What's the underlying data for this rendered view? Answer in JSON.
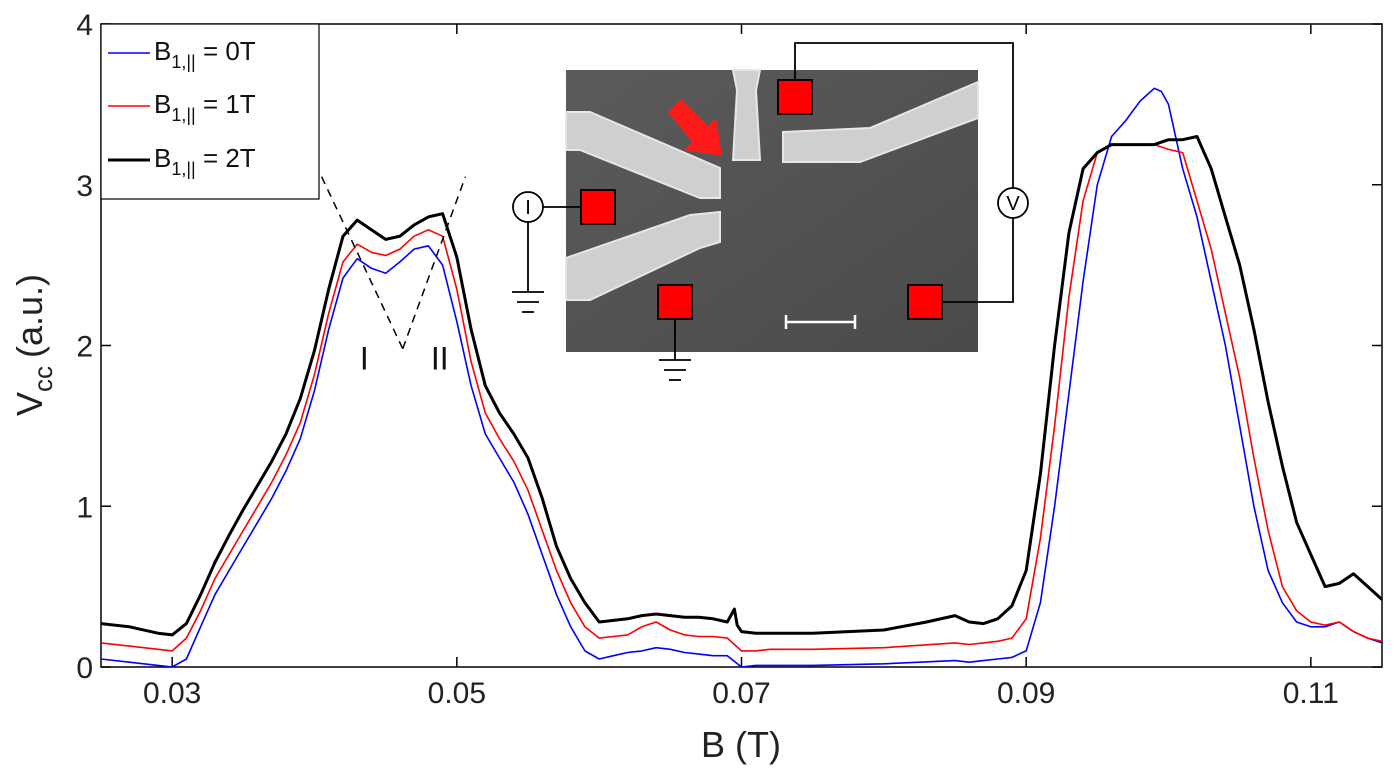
{
  "chart_data": {
    "type": "line",
    "xlabel": "B (T)",
    "ylabel_main": "V",
    "ylabel_sub": "cc",
    "ylabel_unit": "(a.u.)",
    "xlim": [
      0.025,
      0.115
    ],
    "ylim": [
      0,
      4
    ],
    "xticks": [
      0.03,
      0.05,
      0.07,
      0.09,
      0.11
    ],
    "xtick_labels": [
      "0.03",
      "0.05",
      "0.07",
      "0.09",
      "0.11"
    ],
    "yticks": [
      0,
      1,
      2,
      3,
      4
    ],
    "ytick_labels": [
      "0",
      "1",
      "2",
      "3",
      "4"
    ],
    "grid": false,
    "legend_position": "top-left",
    "series": [
      {
        "name": "B1,|| = 0T",
        "label_main": "B",
        "label_sub": "1,||",
        "label_rest": " = 0T",
        "color": "#0000ff",
        "x": [
          0.025,
          0.027,
          0.029,
          0.03,
          0.031,
          0.032,
          0.033,
          0.034,
          0.035,
          0.036,
          0.037,
          0.038,
          0.039,
          0.04,
          0.041,
          0.042,
          0.043,
          0.044,
          0.045,
          0.046,
          0.047,
          0.048,
          0.049,
          0.05,
          0.051,
          0.052,
          0.053,
          0.054,
          0.055,
          0.056,
          0.057,
          0.058,
          0.059,
          0.06,
          0.061,
          0.062,
          0.063,
          0.064,
          0.065,
          0.066,
          0.067,
          0.068,
          0.069,
          0.07,
          0.071,
          0.072,
          0.075,
          0.08,
          0.085,
          0.086,
          0.087,
          0.088,
          0.089,
          0.09,
          0.091,
          0.092,
          0.093,
          0.094,
          0.095,
          0.096,
          0.097,
          0.098,
          0.099,
          0.0995,
          0.1,
          0.101,
          0.102,
          0.103,
          0.104,
          0.105,
          0.106,
          0.107,
          0.108,
          0.109,
          0.11,
          0.111,
          0.112,
          0.113,
          0.114,
          0.115
        ],
        "y": [
          0.05,
          0.03,
          0.01,
          0.0,
          0.05,
          0.25,
          0.45,
          0.6,
          0.75,
          0.9,
          1.05,
          1.22,
          1.42,
          1.72,
          2.1,
          2.42,
          2.54,
          2.48,
          2.45,
          2.52,
          2.6,
          2.62,
          2.5,
          2.15,
          1.75,
          1.45,
          1.3,
          1.15,
          0.95,
          0.7,
          0.45,
          0.25,
          0.1,
          0.05,
          0.07,
          0.09,
          0.1,
          0.12,
          0.11,
          0.09,
          0.08,
          0.07,
          0.07,
          0.0,
          0.01,
          0.01,
          0.01,
          0.02,
          0.04,
          0.03,
          0.04,
          0.05,
          0.06,
          0.1,
          0.4,
          1.0,
          1.7,
          2.4,
          3.0,
          3.3,
          3.4,
          3.52,
          3.6,
          3.58,
          3.5,
          3.1,
          2.8,
          2.4,
          2.0,
          1.5,
          1.0,
          0.6,
          0.4,
          0.28,
          0.25,
          0.25,
          0.28,
          0.22,
          0.18,
          0.15
        ]
      },
      {
        "name": "B1,|| = 1T",
        "label_main": "B",
        "label_sub": "1,||",
        "label_rest": " = 1T",
        "color": "#ff0000",
        "x": [
          0.025,
          0.027,
          0.029,
          0.03,
          0.031,
          0.032,
          0.033,
          0.034,
          0.035,
          0.036,
          0.037,
          0.038,
          0.039,
          0.04,
          0.041,
          0.042,
          0.043,
          0.044,
          0.045,
          0.046,
          0.047,
          0.048,
          0.049,
          0.05,
          0.051,
          0.052,
          0.053,
          0.054,
          0.055,
          0.056,
          0.057,
          0.058,
          0.059,
          0.06,
          0.061,
          0.062,
          0.063,
          0.064,
          0.065,
          0.066,
          0.067,
          0.068,
          0.069,
          0.07,
          0.071,
          0.072,
          0.075,
          0.08,
          0.085,
          0.086,
          0.087,
          0.088,
          0.089,
          0.09,
          0.091,
          0.092,
          0.093,
          0.094,
          0.095,
          0.096,
          0.097,
          0.098,
          0.099,
          0.1,
          0.101,
          0.102,
          0.103,
          0.104,
          0.105,
          0.106,
          0.107,
          0.108,
          0.109,
          0.11,
          0.111,
          0.112,
          0.113,
          0.114,
          0.115
        ],
        "y": [
          0.15,
          0.13,
          0.11,
          0.1,
          0.18,
          0.35,
          0.55,
          0.7,
          0.85,
          1.0,
          1.15,
          1.32,
          1.52,
          1.82,
          2.2,
          2.52,
          2.63,
          2.58,
          2.56,
          2.6,
          2.68,
          2.72,
          2.68,
          2.35,
          1.9,
          1.58,
          1.42,
          1.28,
          1.1,
          0.85,
          0.6,
          0.4,
          0.25,
          0.18,
          0.19,
          0.2,
          0.25,
          0.28,
          0.23,
          0.2,
          0.19,
          0.19,
          0.18,
          0.1,
          0.1,
          0.11,
          0.11,
          0.12,
          0.15,
          0.14,
          0.15,
          0.16,
          0.18,
          0.3,
          0.8,
          1.5,
          2.3,
          2.9,
          3.2,
          3.25,
          3.25,
          3.25,
          3.25,
          3.22,
          3.2,
          2.9,
          2.6,
          2.2,
          1.8,
          1.3,
          0.85,
          0.5,
          0.35,
          0.28,
          0.26,
          0.28,
          0.22,
          0.18,
          0.16
        ]
      },
      {
        "name": "B1,|| = 2T",
        "label_main": "B",
        "label_sub": "1,||",
        "label_rest": " = 2T",
        "color": "#000000",
        "x": [
          0.025,
          0.027,
          0.029,
          0.03,
          0.031,
          0.032,
          0.033,
          0.034,
          0.035,
          0.036,
          0.037,
          0.038,
          0.039,
          0.04,
          0.041,
          0.042,
          0.043,
          0.044,
          0.045,
          0.046,
          0.047,
          0.048,
          0.049,
          0.05,
          0.051,
          0.052,
          0.053,
          0.054,
          0.055,
          0.056,
          0.057,
          0.058,
          0.059,
          0.06,
          0.061,
          0.062,
          0.063,
          0.064,
          0.065,
          0.066,
          0.067,
          0.068,
          0.069,
          0.0695,
          0.0697,
          0.07,
          0.071,
          0.072,
          0.075,
          0.08,
          0.083,
          0.085,
          0.086,
          0.087,
          0.088,
          0.089,
          0.09,
          0.091,
          0.092,
          0.093,
          0.094,
          0.095,
          0.096,
          0.097,
          0.098,
          0.099,
          0.1,
          0.101,
          0.102,
          0.103,
          0.104,
          0.105,
          0.106,
          0.107,
          0.108,
          0.109,
          0.11,
          0.111,
          0.112,
          0.113,
          0.114,
          0.115
        ],
        "y": [
          0.27,
          0.25,
          0.21,
          0.2,
          0.27,
          0.45,
          0.65,
          0.82,
          0.98,
          1.13,
          1.28,
          1.45,
          1.67,
          1.97,
          2.35,
          2.68,
          2.78,
          2.72,
          2.66,
          2.68,
          2.75,
          2.8,
          2.82,
          2.55,
          2.1,
          1.75,
          1.58,
          1.45,
          1.3,
          1.05,
          0.75,
          0.55,
          0.4,
          0.28,
          0.29,
          0.3,
          0.32,
          0.33,
          0.32,
          0.31,
          0.31,
          0.3,
          0.28,
          0.36,
          0.26,
          0.22,
          0.21,
          0.21,
          0.21,
          0.23,
          0.28,
          0.32,
          0.28,
          0.27,
          0.3,
          0.38,
          0.6,
          1.2,
          2.0,
          2.7,
          3.1,
          3.2,
          3.25,
          3.25,
          3.25,
          3.25,
          3.28,
          3.28,
          3.3,
          3.1,
          2.8,
          2.5,
          2.1,
          1.65,
          1.25,
          0.9,
          0.7,
          0.5,
          0.52,
          0.58,
          0.5,
          0.42
        ]
      }
    ],
    "annotations": {
      "peak_I": "I",
      "peak_II": "II",
      "dashed_v_vertex": {
        "x": 0.0462,
        "y": 1.98
      },
      "dashed_v_left_end": {
        "x": 0.0405,
        "y": 3.05
      },
      "dashed_v_right_end": {
        "x": 0.0506,
        "y": 3.05
      },
      "peak_I_pos": {
        "x": 0.0435,
        "y": 1.85
      },
      "peak_II_pos": {
        "x": 0.0488,
        "y": 1.85
      }
    },
    "inset": {
      "description_hidden": true,
      "current_label": "I",
      "voltage_label": "V"
    }
  }
}
